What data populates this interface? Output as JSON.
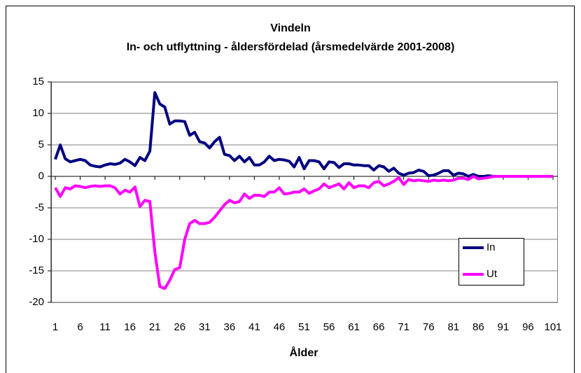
{
  "chart_data": {
    "type": "line",
    "title": "Vindeln",
    "subtitle": "In- och utflyttning - åldersfördelad (årsmedelvärde 2001-2008)",
    "x_label": "Ålder",
    "x": [
      1,
      2,
      3,
      4,
      5,
      6,
      7,
      8,
      9,
      10,
      11,
      12,
      13,
      14,
      15,
      16,
      17,
      18,
      19,
      20,
      21,
      22,
      23,
      24,
      25,
      26,
      27,
      28,
      29,
      30,
      31,
      32,
      33,
      34,
      35,
      36,
      37,
      38,
      39,
      40,
      41,
      42,
      43,
      44,
      45,
      46,
      47,
      48,
      49,
      50,
      51,
      52,
      53,
      54,
      55,
      56,
      57,
      58,
      59,
      60,
      61,
      62,
      63,
      64,
      65,
      66,
      67,
      68,
      69,
      70,
      71,
      72,
      73,
      74,
      75,
      76,
      77,
      78,
      79,
      80,
      81,
      82,
      83,
      84,
      85,
      86,
      87,
      88,
      89,
      90,
      91,
      92,
      93,
      94,
      95,
      96,
      97,
      98,
      99,
      100,
      101
    ],
    "xlim": [
      1,
      101
    ],
    "xticks": [
      1,
      6,
      11,
      16,
      21,
      26,
      31,
      36,
      41,
      46,
      51,
      56,
      61,
      66,
      71,
      76,
      81,
      86,
      91,
      96,
      101
    ],
    "ylim": [
      -20,
      15
    ],
    "yticks": [
      -20,
      -15,
      -10,
      -5,
      0,
      5,
      10,
      15
    ],
    "grid": true,
    "legend": "lower-right",
    "series": [
      {
        "name": "In",
        "color": "#000080",
        "values": [
          2.7,
          5.0,
          2.8,
          2.3,
          2.5,
          2.7,
          2.5,
          1.8,
          1.6,
          1.5,
          1.8,
          2.0,
          1.9,
          2.1,
          2.7,
          2.3,
          1.7,
          3.0,
          2.5,
          4.0,
          13.3,
          11.5,
          11.0,
          8.3,
          8.8,
          8.8,
          8.7,
          6.5,
          7.0,
          5.5,
          5.3,
          4.5,
          5.5,
          6.2,
          3.5,
          3.3,
          2.5,
          3.2,
          2.3,
          3.0,
          1.8,
          1.8,
          2.3,
          3.2,
          2.5,
          2.7,
          2.6,
          2.4,
          1.5,
          3.0,
          1.2,
          2.5,
          2.5,
          2.3,
          1.2,
          2.3,
          2.2,
          1.4,
          2.0,
          2.0,
          1.8,
          1.8,
          1.7,
          1.7,
          1.0,
          1.7,
          1.5,
          0.8,
          1.3,
          0.5,
          0.2,
          0.5,
          0.6,
          1.0,
          0.8,
          0.1,
          0.2,
          0.5,
          0.9,
          0.9,
          0.2,
          0.5,
          0.4,
          0.0,
          0.3,
          0.0,
          0.0,
          0.1,
          0.0,
          0.0,
          0.0,
          0.0,
          0.0,
          0.0,
          0.0,
          0.0,
          0.0,
          0.0,
          0.0,
          0.0,
          0.0
        ]
      },
      {
        "name": "Ut",
        "color": "#ff00ff",
        "values": [
          -1.8,
          -3.2,
          -1.8,
          -2.0,
          -1.5,
          -1.6,
          -1.8,
          -1.6,
          -1.5,
          -1.6,
          -1.5,
          -1.5,
          -1.8,
          -2.8,
          -2.2,
          -2.5,
          -1.7,
          -4.8,
          -3.8,
          -4.0,
          -12.0,
          -17.5,
          -17.8,
          -16.5,
          -14.8,
          -14.5,
          -10.0,
          -7.5,
          -7.0,
          -7.5,
          -7.5,
          -7.3,
          -6.5,
          -5.5,
          -4.5,
          -3.8,
          -4.2,
          -4.0,
          -2.8,
          -3.5,
          -3.0,
          -3.0,
          -3.2,
          -2.5,
          -2.5,
          -1.8,
          -2.8,
          -2.7,
          -2.5,
          -2.5,
          -2.0,
          -2.7,
          -2.3,
          -2.0,
          -1.2,
          -1.8,
          -1.5,
          -1.2,
          -2.0,
          -1.0,
          -1.8,
          -1.5,
          -1.5,
          -1.8,
          -1.0,
          -0.8,
          -1.5,
          -1.2,
          -0.8,
          -0.2,
          -1.3,
          -0.5,
          -0.7,
          -0.6,
          -0.7,
          -0.8,
          -0.6,
          -0.7,
          -0.6,
          -0.7,
          -0.6,
          -0.3,
          -0.3,
          -0.5,
          0.0,
          -0.4,
          -0.3,
          -0.2,
          0.0,
          0.0,
          0.0,
          0.0,
          0.0,
          0.0,
          0.0,
          0.0,
          0.0,
          0.0,
          0.0,
          0.0,
          0.0
        ]
      }
    ]
  }
}
